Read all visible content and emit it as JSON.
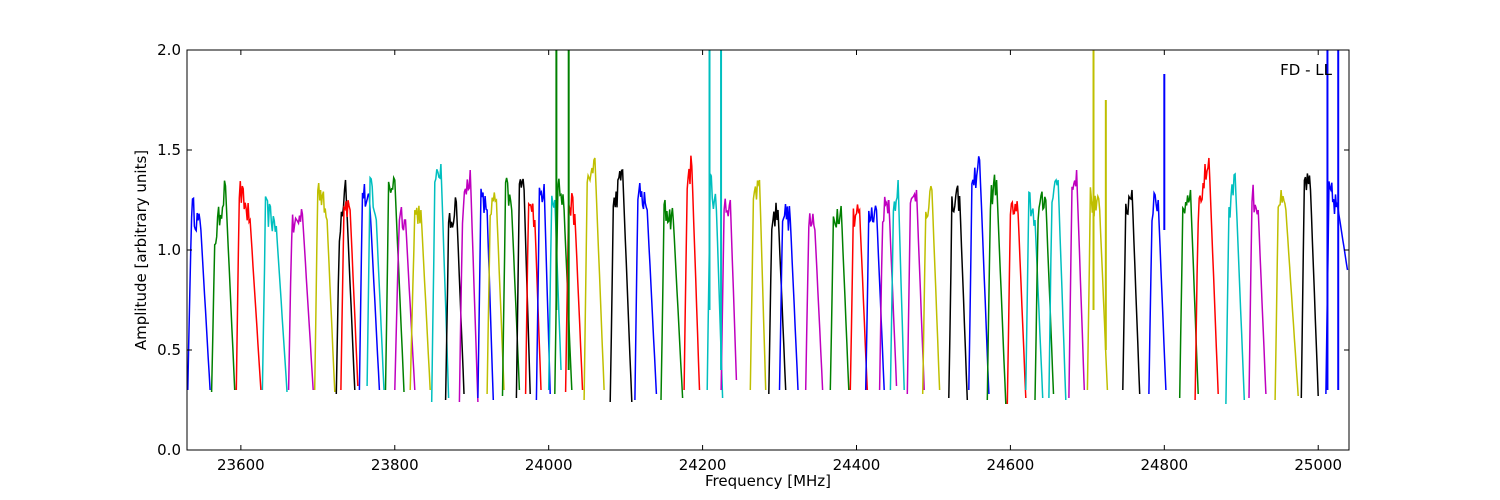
{
  "chart_data": {
    "type": "line",
    "title": "",
    "xlabel": "Frequency [MHz]",
    "ylabel": "Amplitude [arbitrary units]",
    "xlim": [
      23530,
      25040
    ],
    "ylim": [
      0.0,
      2.0
    ],
    "xticks": [
      23600,
      23800,
      24000,
      24200,
      24400,
      24600,
      24800,
      25000
    ],
    "yticks": [
      0.0,
      0.5,
      1.0,
      1.5,
      2.0
    ],
    "ytick_labels": [
      "0.0",
      "0.5",
      "1.0",
      "1.5",
      "2.0"
    ],
    "annotation": "FD - LL",
    "grid": false,
    "legend": "none",
    "segment_shape": "bandpass spectral windows: each window rises steeply from a minimum near 0.3 to a plateau near 1.1-1.4 and falls back near 0.3 at its upper edge",
    "colors": [
      "#0000ff",
      "#008000",
      "#ff0000",
      "#00bfbf",
      "#bf00bf",
      "#bfbf00",
      "#000000"
    ],
    "series": [
      {
        "color": "#0000ff",
        "x": [
          23531,
          23536,
          23548,
          23560
        ],
        "y": [
          0.3,
          1.22,
          1.1,
          0.3
        ]
      },
      {
        "color": "#008000",
        "x": [
          23562,
          23566,
          23580,
          23592
        ],
        "y": [
          0.29,
          1.05,
          1.32,
          0.3
        ]
      },
      {
        "color": "#ff0000",
        "x": [
          23594,
          23598,
          23612,
          23626
        ],
        "y": [
          0.3,
          1.3,
          1.15,
          0.3
        ]
      },
      {
        "color": "#00bfbf",
        "x": [
          23628,
          23632,
          23646,
          23660
        ],
        "y": [
          0.3,
          1.2,
          1.12,
          0.29
        ]
      },
      {
        "color": "#bf00bf",
        "x": [
          23662,
          23666,
          23680,
          23694
        ],
        "y": [
          0.3,
          1.1,
          1.18,
          0.3
        ]
      },
      {
        "color": "#bfbf00",
        "x": [
          23696,
          23700,
          23712,
          23722
        ],
        "y": [
          0.3,
          1.35,
          1.15,
          0.29
        ]
      },
      {
        "color": "#000000",
        "x": [
          23724,
          23728,
          23736,
          23748
        ],
        "y": [
          0.28,
          1.1,
          1.35,
          0.3
        ]
      },
      {
        "color": "#ff0000",
        "x": [
          23730,
          23734,
          23742,
          23752
        ],
        "y": [
          0.3,
          1.25,
          1.2,
          0.32
        ]
      },
      {
        "color": "#0000ff",
        "x": [
          23754,
          23758,
          23768,
          23780
        ],
        "y": [
          0.3,
          1.3,
          1.2,
          0.3
        ]
      },
      {
        "color": "#00bfbf",
        "x": [
          23764,
          23768,
          23776,
          23786
        ],
        "y": [
          0.32,
          1.36,
          1.15,
          0.3
        ]
      },
      {
        "color": "#008000",
        "x": [
          23788,
          23792,
          23800,
          23812
        ],
        "y": [
          0.3,
          1.3,
          1.35,
          0.29
        ]
      },
      {
        "color": "#bf00bf",
        "x": [
          23800,
          23806,
          23814,
          23826
        ],
        "y": [
          0.3,
          1.2,
          1.15,
          0.3
        ]
      },
      {
        "color": "#bfbf00",
        "x": [
          23820,
          23826,
          23834,
          23846
        ],
        "y": [
          0.3,
          1.18,
          1.2,
          0.3
        ]
      },
      {
        "color": "#00bfbf",
        "x": [
          23848,
          23852,
          23860,
          23870
        ],
        "y": [
          0.24,
          1.3,
          1.43,
          0.26
        ]
      },
      {
        "color": "#000000",
        "x": [
          23866,
          23870,
          23880,
          23890
        ],
        "y": [
          0.25,
          1.1,
          1.24,
          0.28
        ]
      },
      {
        "color": "#bf00bf",
        "x": [
          23884,
          23888,
          23898,
          23908
        ],
        "y": [
          0.24,
          1.2,
          1.4,
          0.24
        ]
      },
      {
        "color": "#0000ff",
        "x": [
          23908,
          23912,
          23920,
          23928
        ],
        "y": [
          0.26,
          1.25,
          1.2,
          0.25
        ]
      },
      {
        "color": "#bfbf00",
        "x": [
          23920,
          23924,
          23932,
          23942
        ],
        "y": [
          0.28,
          1.2,
          1.25,
          0.3
        ]
      },
      {
        "color": "#008000",
        "x": [
          23940,
          23944,
          23952,
          23962
        ],
        "y": [
          0.27,
          1.32,
          1.2,
          0.3
        ]
      },
      {
        "color": "#000000",
        "x": [
          23958,
          23962,
          23968,
          23976
        ],
        "y": [
          0.26,
          1.33,
          1.3,
          0.28
        ]
      },
      {
        "color": "#ff0000",
        "x": [
          23970,
          23974,
          23982,
          23990
        ],
        "y": [
          0.28,
          1.3,
          1.15,
          0.3
        ]
      },
      {
        "color": "#0000ff",
        "x": [
          23984,
          23988,
          23994,
          24002
        ],
        "y": [
          0.25,
          1.25,
          1.33,
          0.28
        ]
      },
      {
        "color": "#00bfbf",
        "x": [
          24000,
          24004,
          24008,
          24016
        ],
        "y": [
          0.3,
          1.3,
          1.25,
          0.4
        ]
      },
      {
        "color": "#008000",
        "x": [
          24008,
          24012,
          24020,
          24030
        ],
        "y": [
          0.28,
          1.35,
          1.2,
          0.3
        ]
      },
      {
        "color": "#ff0000",
        "x": [
          24022,
          24026,
          24034,
          24044
        ],
        "y": [
          0.29,
          1.25,
          1.18,
          0.3
        ]
      },
      {
        "color": "#bfbf00",
        "x": [
          24046,
          24050,
          24060,
          24072
        ],
        "y": [
          0.25,
          1.3,
          1.46,
          0.3
        ]
      },
      {
        "color": "#000000",
        "x": [
          24080,
          24084,
          24096,
          24108
        ],
        "y": [
          0.24,
          1.2,
          1.4,
          0.24
        ]
      },
      {
        "color": "#0000ff",
        "x": [
          24112,
          24116,
          24128,
          24140
        ],
        "y": [
          0.25,
          1.3,
          1.2,
          0.28
        ]
      },
      {
        "color": "#008000",
        "x": [
          24146,
          24150,
          24162,
          24174
        ],
        "y": [
          0.25,
          1.2,
          1.15,
          0.26
        ]
      },
      {
        "color": "#ff0000",
        "x": [
          24176,
          24180,
          24186,
          24196
        ],
        "y": [
          0.3,
          1.35,
          1.42,
          0.3
        ]
      },
      {
        "color": "#00bfbf",
        "x": [
          24206,
          24210,
          24218,
          24226
        ],
        "y": [
          0.3,
          1.35,
          1.2,
          0.26
        ]
      },
      {
        "color": "#bf00bf",
        "x": [
          24224,
          24228,
          24236,
          24244
        ],
        "y": [
          0.3,
          1.2,
          1.25,
          0.35
        ]
      },
      {
        "color": "#bfbf00",
        "x": [
          24262,
          24266,
          24274,
          24282
        ],
        "y": [
          0.3,
          1.25,
          1.35,
          0.3
        ]
      },
      {
        "color": "#000000",
        "x": [
          24286,
          24290,
          24298,
          24308
        ],
        "y": [
          0.28,
          1.15,
          1.2,
          0.3
        ]
      },
      {
        "color": "#0000ff",
        "x": [
          24300,
          24304,
          24314,
          24324
        ],
        "y": [
          0.3,
          1.2,
          1.15,
          0.3
        ]
      },
      {
        "color": "#bf00bf",
        "x": [
          24334,
          24338,
          24346,
          24356
        ],
        "y": [
          0.3,
          1.15,
          1.1,
          0.3
        ]
      },
      {
        "color": "#008000",
        "x": [
          24366,
          24370,
          24380,
          24390
        ],
        "y": [
          0.3,
          1.15,
          1.22,
          0.3
        ]
      },
      {
        "color": "#ff0000",
        "x": [
          24392,
          24396,
          24404,
          24414
        ],
        "y": [
          0.3,
          1.18,
          1.2,
          0.3
        ]
      },
      {
        "color": "#0000ff",
        "x": [
          24412,
          24416,
          24426,
          24436
        ],
        "y": [
          0.3,
          1.15,
          1.2,
          0.3
        ]
      },
      {
        "color": "#bf00bf",
        "x": [
          24430,
          24434,
          24442,
          24452
        ],
        "y": [
          0.3,
          1.2,
          1.25,
          0.32
        ]
      },
      {
        "color": "#00bfbf",
        "x": [
          24444,
          24448,
          24454,
          24462
        ],
        "y": [
          0.3,
          1.2,
          1.35,
          0.3
        ]
      },
      {
        "color": "#bf00bf",
        "x": [
          24466,
          24470,
          24478,
          24488
        ],
        "y": [
          0.28,
          1.2,
          1.3,
          0.3
        ]
      },
      {
        "color": "#bfbf00",
        "x": [
          24486,
          24490,
          24498,
          24508
        ],
        "y": [
          0.28,
          1.2,
          1.3,
          0.3
        ]
      },
      {
        "color": "#000000",
        "x": [
          24520,
          24524,
          24534,
          24544
        ],
        "y": [
          0.26,
          1.2,
          1.27,
          0.25
        ]
      },
      {
        "color": "#0000ff",
        "x": [
          24546,
          24550,
          24560,
          24572
        ],
        "y": [
          0.3,
          1.3,
          1.45,
          0.28
        ]
      },
      {
        "color": "#008000",
        "x": [
          24570,
          24574,
          24582,
          24594
        ],
        "y": [
          0.25,
          1.25,
          1.35,
          0.23
        ]
      },
      {
        "color": "#ff0000",
        "x": [
          24596,
          24600,
          24610,
          24620
        ],
        "y": [
          0.23,
          1.2,
          1.18,
          0.26
        ]
      },
      {
        "color": "#00bfbf",
        "x": [
          24620,
          24624,
          24632,
          24642
        ],
        "y": [
          0.3,
          1.25,
          1.15,
          0.26
        ]
      },
      {
        "color": "#008000",
        "x": [
          24632,
          24636,
          24646,
          24656
        ],
        "y": [
          0.25,
          1.2,
          1.25,
          0.28
        ]
      },
      {
        "color": "#00bfbf",
        "x": [
          24650,
          24654,
          24662,
          24672
        ],
        "y": [
          0.26,
          1.3,
          1.35,
          0.25
        ]
      },
      {
        "color": "#bf00bf",
        "x": [
          24676,
          24680,
          24686,
          24696
        ],
        "y": [
          0.26,
          1.3,
          1.4,
          0.3
        ]
      },
      {
        "color": "#bfbf00",
        "x": [
          24700,
          24704,
          24716,
          24726
        ],
        "y": [
          0.3,
          1.25,
          1.2,
          0.3
        ]
      },
      {
        "color": "#000000",
        "x": [
          24746,
          24750,
          24758,
          24768
        ],
        "y": [
          0.3,
          1.2,
          1.3,
          0.28
        ]
      },
      {
        "color": "#0000ff",
        "x": [
          24780,
          24784,
          24792,
          24802
        ],
        "y": [
          0.28,
          1.2,
          1.25,
          0.3
        ]
      },
      {
        "color": "#008000",
        "x": [
          24820,
          24824,
          24834,
          24844
        ],
        "y": [
          0.26,
          1.2,
          1.3,
          0.28
        ]
      },
      {
        "color": "#ff0000",
        "x": [
          24840,
          24844,
          24858,
          24870
        ],
        "y": [
          0.25,
          1.2,
          1.46,
          0.28
        ]
      },
      {
        "color": "#00bfbf",
        "x": [
          24880,
          24884,
          24892,
          24904
        ],
        "y": [
          0.23,
          1.2,
          1.38,
          0.25
        ]
      },
      {
        "color": "#bf00bf",
        "x": [
          24910,
          24914,
          24922,
          24932
        ],
        "y": [
          0.26,
          1.28,
          1.2,
          0.28
        ]
      },
      {
        "color": "#bfbf00",
        "x": [
          24944,
          24948,
          24958,
          24974
        ],
        "y": [
          0.25,
          1.25,
          1.2,
          0.27
        ]
      },
      {
        "color": "#000000",
        "x": [
          24978,
          24982,
          24990,
          25000
        ],
        "y": [
          0.26,
          1.35,
          1.3,
          0.27
        ]
      },
      {
        "color": "#0000ff",
        "x": [
          25010,
          25014,
          25026,
          25038
        ],
        "y": [
          0.28,
          1.3,
          1.2,
          0.9
        ]
      }
    ],
    "spikes": [
      {
        "color": "#008000",
        "x": 24010,
        "y_from": 0.7,
        "y_to": 2.0
      },
      {
        "color": "#008000",
        "x": 24026,
        "y_from": 0.4,
        "y_to": 2.0
      },
      {
        "color": "#00bfbf",
        "x": 24209,
        "y_from": 0.7,
        "y_to": 2.0
      },
      {
        "color": "#00bfbf",
        "x": 24224,
        "y_from": 0.4,
        "y_to": 2.0
      },
      {
        "color": "#bfbf00",
        "x": 24708,
        "y_from": 0.7,
        "y_to": 2.0
      },
      {
        "color": "#bfbf00",
        "x": 24724,
        "y_from": 0.5,
        "y_to": 1.75
      },
      {
        "color": "#0000ff",
        "x": 24800,
        "y_from": 1.1,
        "y_to": 1.88
      },
      {
        "color": "#0000ff",
        "x": 25012,
        "y_from": 0.3,
        "y_to": 2.0
      },
      {
        "color": "#0000ff",
        "x": 25026,
        "y_from": 0.3,
        "y_to": 2.0
      }
    ]
  }
}
